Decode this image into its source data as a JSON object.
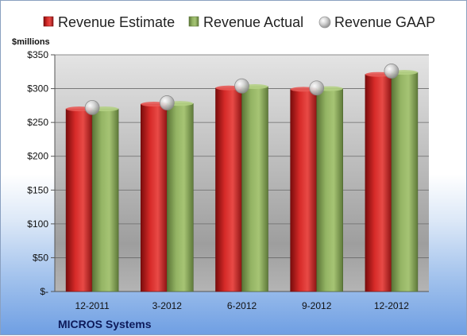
{
  "chart_data": {
    "type": "bar",
    "title": "MICROS Systems",
    "ylabel": "$millions",
    "categories": [
      "12-2011",
      "3-2012",
      "6-2012",
      "9-2012",
      "12-2012"
    ],
    "series": [
      {
        "name": "Revenue Estimate",
        "kind": "bar",
        "color": "#c8201e",
        "values": [
          270,
          277,
          301,
          299,
          321
        ]
      },
      {
        "name": "Revenue Actual",
        "kind": "bar",
        "color": "#8aa85a",
        "values": [
          270,
          278,
          303,
          300,
          324
        ]
      },
      {
        "name": "Revenue GAAP",
        "kind": "marker",
        "color": "#c0c0c0",
        "values": [
          272,
          279,
          304,
          301,
          326
        ]
      }
    ],
    "ylim": [
      0,
      350
    ],
    "yticks": [
      {
        "value": 0,
        "label": "$-"
      },
      {
        "value": 50,
        "label": "$50"
      },
      {
        "value": 100,
        "label": "$100"
      },
      {
        "value": 150,
        "label": "$150"
      },
      {
        "value": 200,
        "label": "$200"
      },
      {
        "value": 250,
        "label": "$250"
      },
      {
        "value": 300,
        "label": "$300"
      },
      {
        "value": 350,
        "label": "$350"
      }
    ],
    "grid": true,
    "legend_position": "top"
  }
}
